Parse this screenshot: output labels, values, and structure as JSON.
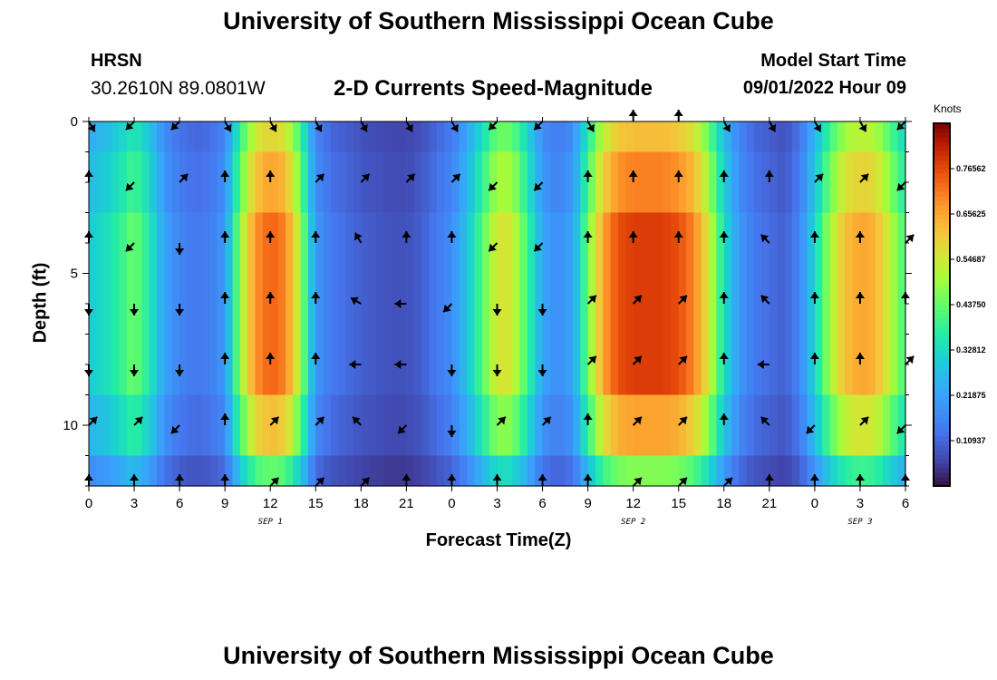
{
  "header": {
    "title": "University of Southern Mississippi Ocean Cube",
    "station": "HRSN",
    "coordinates": "30.2610N  89.0801W",
    "subtitle": "2-D Currents Speed-Magnitude",
    "model_start_label": "Model Start Time",
    "model_start_value": "09/01/2022 Hour 09"
  },
  "footer": {
    "title": "University of Southern Mississippi Ocean Cube"
  },
  "chart_data": {
    "type": "heatmap",
    "title": "2-D Currents Speed-Magnitude",
    "xlabel": "Forecast Time(Z)",
    "ylabel": "Depth (ft)",
    "colorbar_label": "Knots",
    "x_hours": [
      0,
      3,
      6,
      9,
      12,
      15,
      18,
      21,
      24,
      27,
      30,
      33,
      36,
      39,
      42,
      45,
      48,
      51,
      54
    ],
    "x_tick_labels": [
      "0",
      "3",
      "6",
      "9",
      "12",
      "15",
      "18",
      "21",
      "0",
      "3",
      "6",
      "9",
      "12",
      "15",
      "18",
      "21",
      "0",
      "3",
      "6"
    ],
    "xlim": [
      0,
      54
    ],
    "day_labels": [
      {
        "text": "SEP 1",
        "hour": 12
      },
      {
        "text": "SEP 2",
        "hour": 36
      },
      {
        "text": "SEP 3",
        "hour": 51
      }
    ],
    "y_ticks": [
      0,
      5,
      10
    ],
    "y_tick_labels": [
      "0",
      "5",
      "10"
    ],
    "ylim": [
      0,
      12
    ],
    "colorbar_ticks": [
      "0.10937",
      "0.21875",
      "0.32812",
      "0.43750",
      "0.54687",
      "0.65625",
      "0.76562"
    ],
    "colorbar_tick_values": [
      0.10937,
      0.21875,
      0.32812,
      0.4375,
      0.54687,
      0.65625,
      0.76562
    ],
    "vmin": 0.0,
    "vmax": 0.875,
    "speed_profile_hours": [
      0,
      1,
      2,
      3,
      4,
      5,
      6,
      7,
      8,
      9,
      10,
      11,
      12,
      13,
      14,
      15,
      16,
      17,
      18,
      19,
      20,
      21,
      22,
      23,
      24,
      25,
      26,
      27,
      28,
      29,
      30,
      31,
      32,
      33,
      34,
      35,
      36,
      37,
      38,
      39,
      40,
      41,
      42,
      43,
      44,
      45,
      46,
      47,
      48,
      49,
      50,
      51,
      52,
      53,
      54
    ],
    "speed_profile_knots": [
      0.3,
      0.33,
      0.38,
      0.45,
      0.36,
      0.22,
      0.16,
      0.14,
      0.15,
      0.2,
      0.48,
      0.68,
      0.74,
      0.7,
      0.5,
      0.2,
      0.14,
      0.12,
      0.1,
      0.09,
      0.08,
      0.08,
      0.1,
      0.14,
      0.18,
      0.28,
      0.42,
      0.56,
      0.55,
      0.4,
      0.22,
      0.18,
      0.22,
      0.45,
      0.66,
      0.76,
      0.78,
      0.78,
      0.78,
      0.76,
      0.7,
      0.55,
      0.34,
      0.2,
      0.14,
      0.12,
      0.1,
      0.16,
      0.32,
      0.5,
      0.62,
      0.66,
      0.64,
      0.52,
      0.4
    ],
    "arrow_depths": [
      0,
      2,
      4,
      6,
      8,
      10,
      12
    ],
    "arrow_hours": [
      0,
      3,
      6,
      9,
      12,
      15,
      18,
      21,
      24,
      27,
      30,
      33,
      36,
      39,
      42,
      45,
      48,
      51,
      54
    ],
    "arrow_directions_deg": [
      [
        300,
        225,
        225,
        300,
        300,
        300,
        300,
        300,
        300,
        225,
        225,
        300,
        90,
        90,
        300,
        300,
        300,
        300,
        225
      ],
      [
        90,
        225,
        45,
        90,
        90,
        45,
        45,
        45,
        45,
        225,
        225,
        90,
        90,
        90,
        90,
        90,
        45,
        45,
        225
      ],
      [
        90,
        225,
        270,
        90,
        90,
        90,
        120,
        90,
        90,
        225,
        225,
        90,
        90,
        90,
        90,
        135,
        90,
        90,
        45
      ],
      [
        270,
        270,
        270,
        90,
        90,
        90,
        150,
        180,
        225,
        270,
        270,
        45,
        45,
        45,
        90,
        135,
        90,
        90,
        90
      ],
      [
        270,
        270,
        270,
        90,
        90,
        90,
        180,
        180,
        270,
        270,
        270,
        45,
        45,
        45,
        90,
        180,
        90,
        90,
        45
      ],
      [
        45,
        45,
        225,
        90,
        45,
        45,
        135,
        225,
        270,
        45,
        45,
        90,
        45,
        45,
        90,
        135,
        225,
        45,
        225
      ],
      [
        90,
        90,
        90,
        90,
        45,
        45,
        45,
        90,
        90,
        90,
        90,
        90,
        45,
        45,
        45,
        90,
        90,
        90,
        90
      ]
    ]
  }
}
